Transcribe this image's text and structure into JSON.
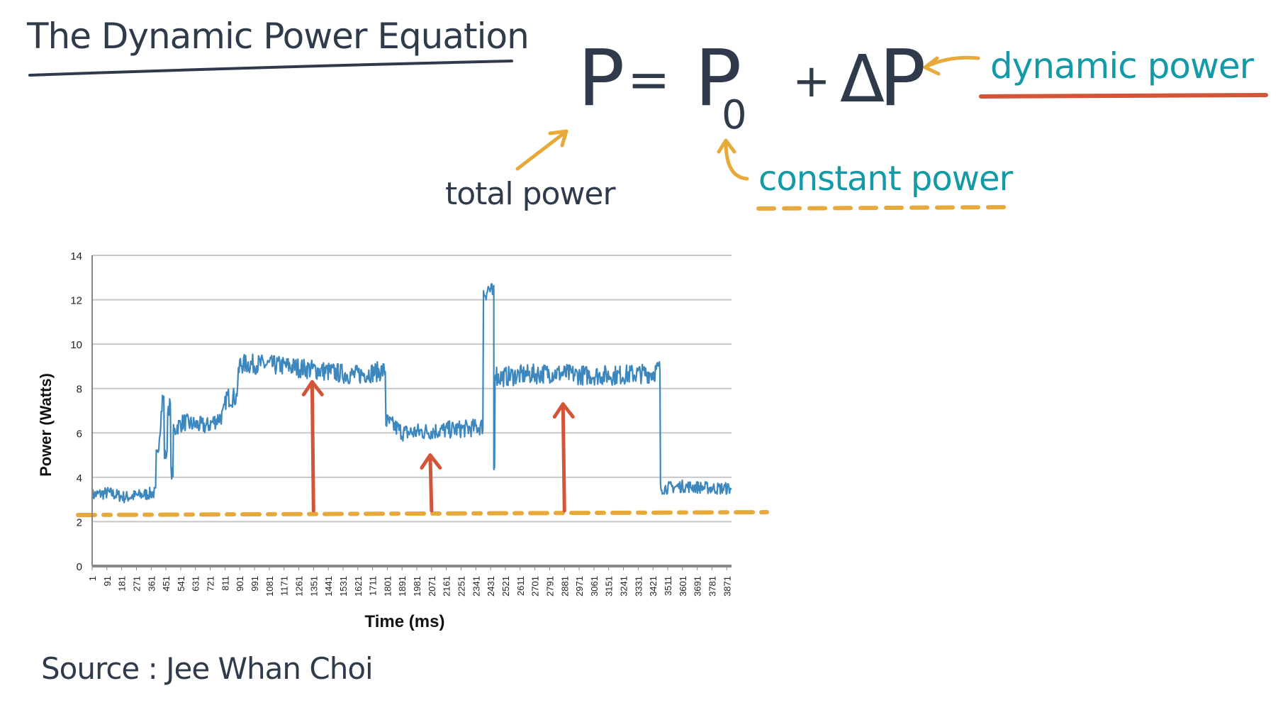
{
  "title": "The Dynamic Power Equation",
  "equation": {
    "lhs": "P",
    "equals": "=",
    "p0": "P",
    "p0_subscript": "0",
    "plus": "+",
    "delta": "Δ",
    "delta_p": "P"
  },
  "annotations": {
    "total_power": "total power",
    "constant_power": "constant power",
    "dynamic_power": "dynamic power"
  },
  "source": "Source : Jee Whan Choi",
  "colors": {
    "series": "#3d87bf",
    "grid": "#c8c8c8",
    "axis": "#888888",
    "annotation_orange": "#e6a93a",
    "annotation_red": "#d2553a",
    "annotation_teal": "#129aa8",
    "ink": "#2f3b4a"
  },
  "chart_data": {
    "type": "line",
    "title": "",
    "xlabel": "Time (ms)",
    "ylabel": "Power (Watts)",
    "ylim": [
      0,
      14
    ],
    "yticks": [
      0,
      2,
      4,
      6,
      8,
      10,
      12,
      14
    ],
    "x_range": [
      1,
      3900
    ],
    "xticks": [
      1,
      91,
      181,
      271,
      361,
      451,
      541,
      631,
      721,
      811,
      901,
      991,
      1081,
      1171,
      1261,
      1351,
      1441,
      1531,
      1621,
      1711,
      1801,
      1891,
      1981,
      2071,
      2161,
      2251,
      2341,
      2431,
      2521,
      2611,
      2701,
      2791,
      2881,
      2971,
      3061,
      3151,
      3241,
      3331,
      3421,
      3511,
      3601,
      3691,
      3781,
      3871
    ],
    "grid": true,
    "legend": "none",
    "series": [
      {
        "x": [
          1,
          100,
          200,
          300,
          380,
          400,
          430,
          450,
          470,
          490,
          500,
          520,
          560,
          600,
          700,
          800,
          820,
          880,
          901,
          1000,
          1200,
          1400,
          1600,
          1780,
          1801,
          1900,
          2100,
          2300,
          2380,
          2391,
          2420,
          2450,
          2451,
          2465,
          2470,
          2600,
          2800,
          3000,
          3200,
          3420,
          3460,
          3470,
          3600,
          3800,
          3900
        ],
        "y": [
          3.2,
          3.3,
          3.1,
          3.2,
          3.3,
          5.0,
          7.5,
          5.0,
          7.2,
          4.2,
          6.0,
          6.3,
          6.5,
          6.4,
          6.3,
          6.8,
          7.6,
          7.6,
          9.1,
          9.1,
          9.0,
          8.8,
          8.6,
          8.8,
          6.5,
          6.0,
          6.1,
          6.2,
          6.3,
          12.3,
          12.5,
          12.2,
          4.4,
          8.8,
          8.5,
          8.6,
          8.7,
          8.6,
          8.6,
          8.7,
          8.9,
          3.5,
          3.6,
          3.5,
          3.5
        ]
      }
    ],
    "baseline_annotation": {
      "y": 2.3,
      "label": "constant power"
    },
    "arrow_annotations_x": [
      1351,
      2071,
      2881
    ]
  }
}
